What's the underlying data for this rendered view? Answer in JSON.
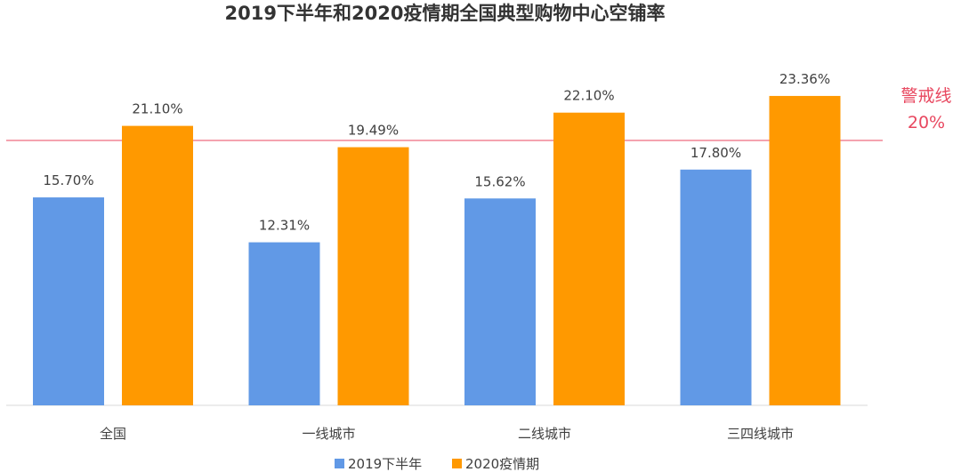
{
  "chart_data": {
    "type": "bar",
    "title": "2019下半年和2020疫情期全国典型购物中心空铺率",
    "categories": [
      "全国",
      "一线城市",
      "二线城市",
      "三四线城市"
    ],
    "series": [
      {
        "name": "2019下半年",
        "values": [
          15.7,
          12.31,
          15.62,
          17.8
        ],
        "labels": [
          "15.70%",
          "12.31%",
          "15.62%",
          "17.80%"
        ],
        "color": "#6199E6"
      },
      {
        "name": "2020疫情期",
        "values": [
          21.1,
          19.49,
          22.1,
          23.36
        ],
        "labels": [
          "21.10%",
          "19.49%",
          "22.10%",
          "23.36%"
        ],
        "color": "#FF9900"
      }
    ],
    "reference_line": {
      "value": 20,
      "label_line1": "警戒线",
      "label_line2": "20%",
      "color": "#E8475F"
    },
    "ylim": [
      0,
      25.5
    ],
    "grid": false,
    "legend_position": "bottom",
    "axis_color": "#D9D9D9"
  }
}
